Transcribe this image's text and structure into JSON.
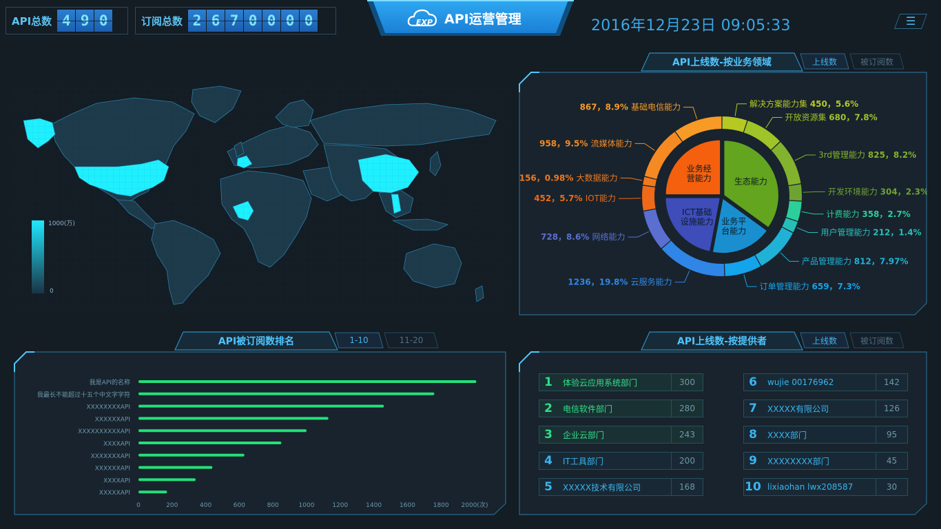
{
  "header": {
    "api_total_label": "API总数",
    "api_total_digits": [
      "4",
      "9",
      "0"
    ],
    "subscribe_total_label": "订阅总数",
    "subscribe_total_digits": [
      "2",
      "6",
      "7",
      "0",
      "0",
      "0",
      "0"
    ],
    "logo_text": "EXP",
    "title": "API运营管理",
    "datetime": "2016年12月23日  09:05:33",
    "menu_icon": "hamburger-icon"
  },
  "map": {
    "legend_max": "1000(万)",
    "legend_min": "0",
    "colors": {
      "high": "#1ff0ff",
      "low": "#1d3a4a",
      "border": "#2a7ea6"
    }
  },
  "donut_panel": {
    "title": "API上线数-按业务领域",
    "tabs": [
      {
        "label": "上线数",
        "active": true
      },
      {
        "label": "被订阅数",
        "active": false
      }
    ],
    "chart_data": {
      "type": "pie",
      "inner": [
        {
          "label": "生态能力",
          "color": "#63a51e",
          "value": 35
        },
        {
          "label": "业务平台能力",
          "color": "#1a8fd0",
          "value": 18
        },
        {
          "label": "ICT基础设施能力",
          "color": "#3e4dba",
          "value": 22
        },
        {
          "label": "业务经营能力",
          "color": "#f4600e",
          "value": 25
        }
      ],
      "outer": [
        {
          "label": "解决方案能力集",
          "value": 450,
          "pct": "5.6%",
          "text": "450，5.6%",
          "color": "#b6c922"
        },
        {
          "label": "开放资源集",
          "value": 680,
          "pct": "7.8%",
          "text": "680，7.8%",
          "color": "#9ec428"
        },
        {
          "label": "3rd管理能力",
          "value": 825,
          "pct": "8.2%",
          "text": "825，8.2%",
          "color": "#83b22e"
        },
        {
          "label": "开发环境能力",
          "value": 304,
          "pct": "2.3%",
          "text": "304，2.3%",
          "color": "#6ea332"
        },
        {
          "label": "计费能力",
          "value": 358,
          "pct": "2.7%",
          "text": "358，2.7%",
          "color": "#2ccf9a"
        },
        {
          "label": "用户管理能力",
          "value": 212,
          "pct": "1.4%",
          "text": "212，1.4%",
          "color": "#26bfb8"
        },
        {
          "label": "产品管理能力",
          "value": 812,
          "pct": "7.97%",
          "text": "812，7.97%",
          "color": "#1fb2d6"
        },
        {
          "label": "订单管理能力",
          "value": 659,
          "pct": "7.3%",
          "text": "659，7.3%",
          "color": "#14a4ec"
        },
        {
          "label": "云服务能力",
          "value": 1236,
          "pct": "19.8%",
          "text": "1236，19.8%",
          "color": "#2f86e6"
        },
        {
          "label": "网络能力",
          "value": 728,
          "pct": "8.6%",
          "text": "728，8.6%",
          "color": "#5a6fd0"
        },
        {
          "label": "IOT能力",
          "value": 452,
          "pct": "5.7%",
          "text": "452，5.7%",
          "color": "#ee6a18"
        },
        {
          "label": "大数据能力",
          "value": 156,
          "pct": "0.98%",
          "text": "156，0.98%",
          "color": "#f2781c"
        },
        {
          "label": "流媒体能力",
          "value": 958,
          "pct": "9.5%",
          "text": "958，9.5%",
          "color": "#f68a22"
        },
        {
          "label": "基础电信能力",
          "value": 867,
          "pct": "8.9%",
          "text": "867，8.9%",
          "color": "#f79a26"
        }
      ]
    }
  },
  "ranking_panel": {
    "title": "API被订阅数排名",
    "tabs": [
      {
        "label": "1-10",
        "active": true
      },
      {
        "label": "11-20",
        "active": false
      }
    ],
    "chart_data": {
      "type": "bar",
      "orientation": "horizontal",
      "categories": [
        "我是API的名称",
        "我最长不能超过十五个中文字字符",
        "XXXXXXXXAPI",
        "XXXXXXAPI",
        "XXXXXXXXXXAPI",
        "XXXXAPI",
        "XXXXXXXAPI",
        "XXXXXXAPI",
        "XXXXAPI",
        "XXXXXAPI"
      ],
      "values": [
        2010,
        1760,
        1460,
        1130,
        1000,
        850,
        630,
        440,
        340,
        170
      ],
      "xlim": [
        0,
        2000
      ],
      "ticks": [
        "0",
        "200",
        "400",
        "600",
        "800",
        "1000",
        "1200",
        "1400",
        "1600",
        "1800",
        "2000(次)"
      ],
      "bar_color": "#23e07a",
      "grid": false
    }
  },
  "provider_panel": {
    "title": "API上线数-按提供者",
    "tabs": [
      {
        "label": "上线数",
        "active": true
      },
      {
        "label": "被订阅数",
        "active": false
      }
    ],
    "rows": [
      {
        "rank": "1",
        "name": "体验云应用系统部门",
        "value": "300"
      },
      {
        "rank": "2",
        "name": "电信软件部门",
        "value": "280"
      },
      {
        "rank": "3",
        "name": "企业云部门",
        "value": "243"
      },
      {
        "rank": "4",
        "name": "IT工具部门",
        "value": "200"
      },
      {
        "rank": "5",
        "name": "XXXXX技术有限公司",
        "value": "168"
      },
      {
        "rank": "6",
        "name": "wujie 00176962",
        "value": "142"
      },
      {
        "rank": "7",
        "name": "XXXXX有限公司",
        "value": "126"
      },
      {
        "rank": "8",
        "name": "XXXX部门",
        "value": "95"
      },
      {
        "rank": "9",
        "name": "XXXXXXXX部门",
        "value": "45"
      },
      {
        "rank": "10",
        "name": "lixiaohan lwx208587",
        "value": "30"
      }
    ]
  }
}
